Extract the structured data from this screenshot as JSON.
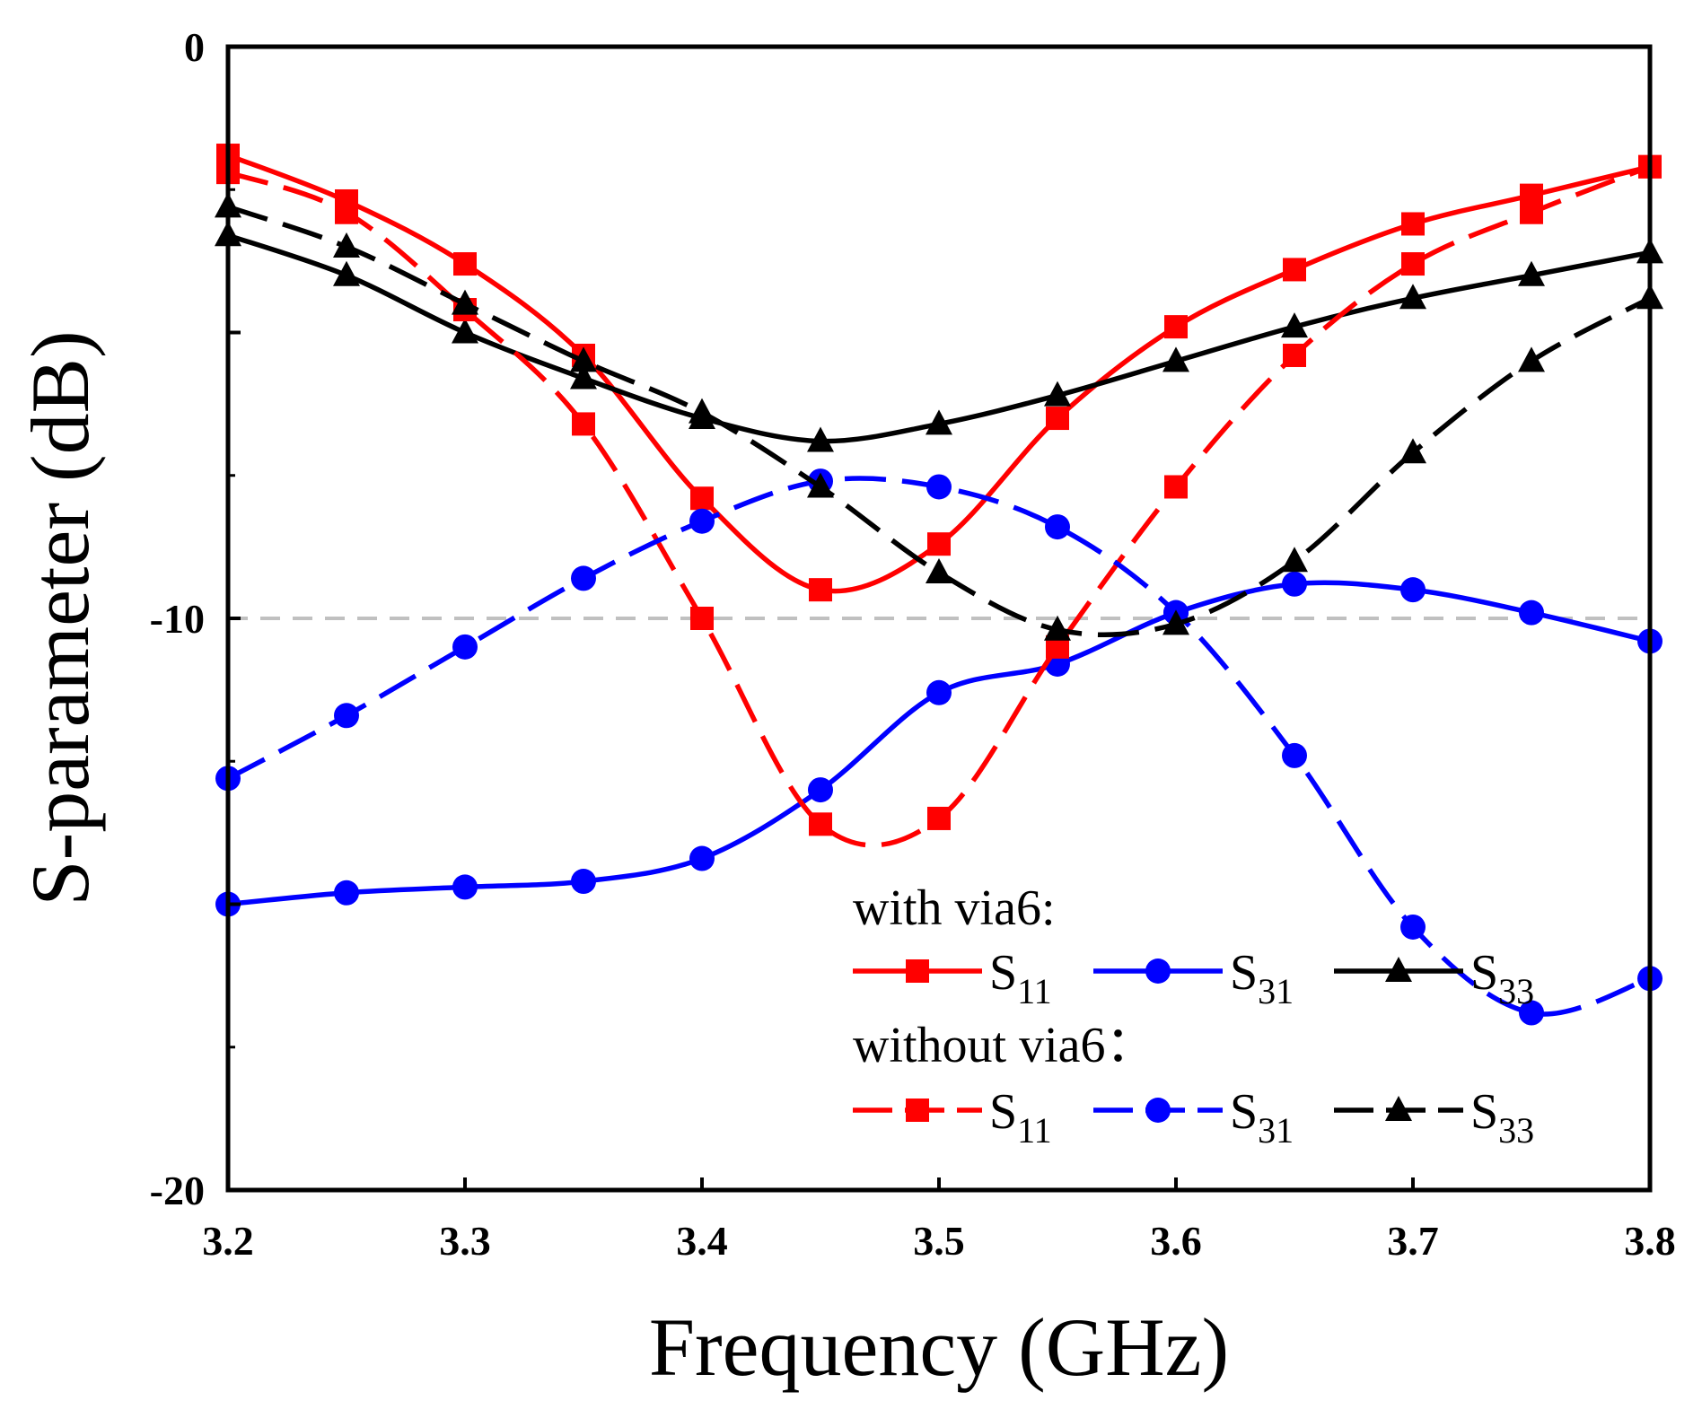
{
  "chart_data": {
    "type": "line",
    "xlabel": "Frequency (GHz)",
    "ylabel": "S-parameter (dB)",
    "xlim": [
      3.2,
      3.8
    ],
    "ylim": [
      -20,
      0
    ],
    "xticks": [
      "3.2",
      "3.3",
      "3.4",
      "3.5",
      "3.6",
      "3.7",
      "3.8"
    ],
    "yticks": [
      {
        "value": 0,
        "label": "0"
      },
      {
        "value": -10,
        "label": "-10"
      },
      {
        "value": -20,
        "label": "-20"
      }
    ],
    "reference_line": -10,
    "x": [
      3.2,
      3.25,
      3.3,
      3.35,
      3.4,
      3.45,
      3.5,
      3.55,
      3.6,
      3.65,
      3.7,
      3.75,
      3.8
    ],
    "legend": {
      "group1_title": "with via6:",
      "group2_title": "without via6："
    },
    "series": [
      {
        "name": "S11 (with via6)",
        "group": "with",
        "color": "#ff0000",
        "dash": "solid",
        "marker": "square",
        "label_main": "S",
        "label_sub": "11",
        "values": [
          -1.9,
          -2.7,
          -3.8,
          -5.4,
          -7.9,
          -9.5,
          -8.7,
          -6.5,
          -4.9,
          -3.9,
          -3.1,
          -2.6,
          -2.1
        ]
      },
      {
        "name": "S31 (with via6)",
        "group": "with",
        "color": "#0000ff",
        "dash": "solid",
        "marker": "circle",
        "label_main": "S",
        "label_sub": "31",
        "values": [
          -15.0,
          -14.8,
          -14.7,
          -14.6,
          -14.2,
          -13.0,
          -11.3,
          -10.8,
          -9.9,
          -9.4,
          -9.5,
          -9.9,
          -10.4
        ]
      },
      {
        "name": "S33 (with via6)",
        "group": "with",
        "color": "#000000",
        "dash": "solid",
        "marker": "triangle",
        "label_main": "S",
        "label_sub": "33",
        "values": [
          -3.3,
          -4.0,
          -5.0,
          -5.8,
          -6.5,
          -6.9,
          -6.6,
          -6.1,
          -5.5,
          -4.9,
          -4.4,
          -4.0,
          -3.6
        ]
      },
      {
        "name": "S11 (without via6)",
        "group": "without",
        "color": "#ff0000",
        "dash": "dash",
        "marker": "square",
        "label_main": "S",
        "label_sub": "11",
        "values": [
          -2.2,
          -2.9,
          -4.6,
          -6.6,
          -10.0,
          -13.6,
          -13.5,
          -10.5,
          -7.7,
          -5.4,
          -3.8,
          -2.9,
          -2.1
        ]
      },
      {
        "name": "S31 (without via6)",
        "group": "without",
        "color": "#0000ff",
        "dash": "dash",
        "marker": "circle",
        "label_main": "S",
        "label_sub": "31",
        "values": [
          -12.8,
          -11.7,
          -10.5,
          -9.3,
          -8.3,
          -7.6,
          -7.7,
          -8.4,
          -9.9,
          -12.4,
          -15.4,
          -16.9,
          -16.3
        ]
      },
      {
        "name": "S33 (without via6)",
        "group": "without",
        "color": "#000000",
        "dash": "dash",
        "marker": "triangle",
        "label_main": "S",
        "label_sub": "33",
        "values": [
          -2.8,
          -3.5,
          -4.5,
          -5.5,
          -6.4,
          -7.7,
          -9.2,
          -10.2,
          -10.1,
          -9.0,
          -7.1,
          -5.5,
          -4.4
        ]
      }
    ]
  }
}
